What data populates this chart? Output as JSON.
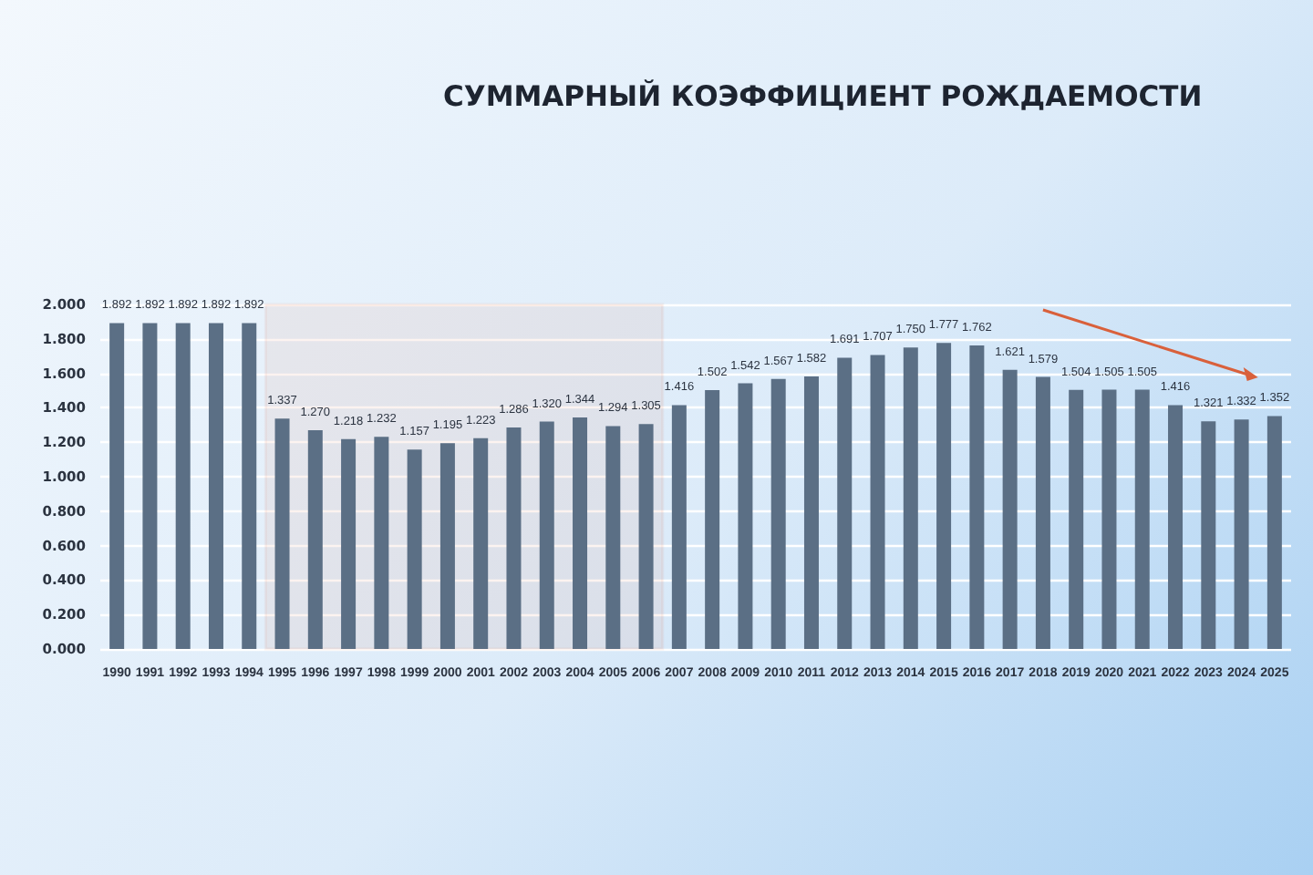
{
  "chart_data": {
    "type": "bar",
    "title": "СУММАРНЫЙ КОЭФФИЦИЕНТ РОЖДАЕМОСТИ",
    "categories": [
      "1990",
      "1991",
      "1992",
      "1993",
      "1994",
      "1995",
      "1996",
      "1997",
      "1998",
      "1999",
      "2000",
      "2001",
      "2002",
      "2003",
      "2004",
      "2005",
      "2006",
      "2007",
      "2008",
      "2009",
      "2010",
      "2011",
      "2012",
      "2013",
      "2014",
      "2015",
      "2016",
      "2017",
      "2018",
      "2019",
      "2020",
      "2021",
      "2022",
      "2023",
      "2024",
      "2025"
    ],
    "values": [
      1.892,
      1.892,
      1.892,
      1.892,
      1.892,
      1.337,
      1.27,
      1.218,
      1.232,
      1.157,
      1.195,
      1.223,
      1.286,
      1.32,
      1.344,
      1.294,
      1.305,
      1.416,
      1.502,
      1.542,
      1.567,
      1.582,
      1.691,
      1.707,
      1.75,
      1.777,
      1.762,
      1.621,
      1.579,
      1.504,
      1.505,
      1.505,
      1.416,
      1.321,
      1.332,
      1.352
    ],
    "value_labels": [
      "1.892",
      "1.892",
      "1.892",
      "1.892",
      "1.892",
      "1.337",
      "1.270",
      "1.218",
      "1.232",
      "1.157",
      "1.195",
      "1.223",
      "1.286",
      "1.320",
      "1.344",
      "1.294",
      "1.305",
      "1.416",
      "1.502",
      "1.542",
      "1.567",
      "1.582",
      "1.691",
      "1.707",
      "1.750",
      "1.777",
      "1.762",
      "1.621",
      "1.579",
      "1.504",
      "1.505",
      "1.505",
      "1.416",
      "1.321",
      "1.332",
      "1.352"
    ],
    "color": "#5b6f85",
    "ylim": [
      0,
      2
    ],
    "yticks": [
      {
        "value": 0,
        "label": "0.000"
      },
      {
        "value": 0.2,
        "label": "0.200"
      },
      {
        "value": 0.4,
        "label": "0.400"
      },
      {
        "value": 0.6,
        "label": "0.600"
      },
      {
        "value": 0.8,
        "label": "0.800"
      },
      {
        "value": 1,
        "label": "1.000"
      },
      {
        "value": 1.2,
        "label": "1.200"
      },
      {
        "value": 1.4,
        "label": "1.400"
      },
      {
        "value": 1.6,
        "label": "1.600"
      },
      {
        "value": 1.8,
        "label": "1.800"
      },
      {
        "value": 2,
        "label": "2.000"
      }
    ],
    "bands": [
      {
        "axis": "x",
        "from": "1995",
        "to": "2006",
        "color": "#d9603b"
      }
    ],
    "grid": "y"
  }
}
